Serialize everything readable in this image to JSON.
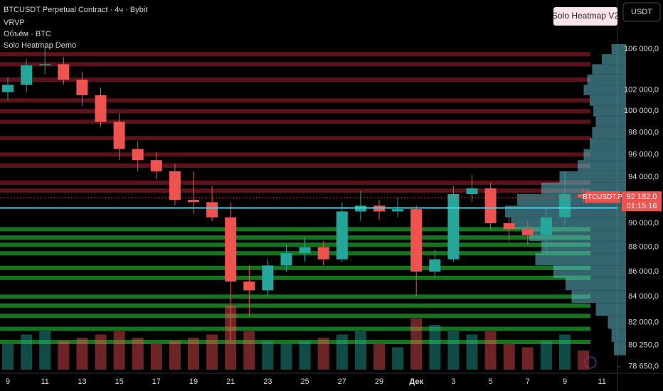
{
  "header": {
    "symbol": "BTCUSDT Perpetual Contract · 4ч · Bybit",
    "indicators": [
      "VRVP",
      "Объём · BTC",
      "Solo Heatmap Demo"
    ],
    "badge": "Solo Heatmap V2",
    "currency": "USDT"
  },
  "chart_data": {
    "type": "candlestick",
    "log_scale": true,
    "categories": [
      "9",
      null,
      "11",
      null,
      "13",
      null,
      "15",
      null,
      "17",
      null,
      "19",
      null,
      "21",
      null,
      "23",
      null,
      "25",
      null,
      "27",
      null,
      "29",
      null,
      "Дек",
      null,
      "3",
      null,
      "5",
      null,
      "7",
      null,
      "9",
      null,
      "11"
    ],
    "open": [
      101800,
      102500,
      104400,
      104500,
      103000,
      101500,
      99000,
      96500,
      95500,
      94500,
      92000,
      91800,
      90500,
      85200,
      84500,
      86500,
      87500,
      88000,
      87000,
      91000,
      91500,
      91000,
      91200,
      86000,
      87000,
      92500,
      93000,
      90000,
      89500,
      89000,
      90500,
      92500,
      null
    ],
    "high": [
      103200,
      105000,
      106200,
      105200,
      103800,
      102200,
      99800,
      97200,
      96200,
      95200,
      94500,
      93200,
      91800,
      86500,
      87000,
      88200,
      88800,
      88500,
      91800,
      92800,
      92000,
      92200,
      91500,
      87800,
      93200,
      94200,
      93500,
      90500,
      90200,
      91200,
      94500,
      93000,
      null
    ],
    "low": [
      101000,
      101800,
      103500,
      102500,
      100500,
      98500,
      95500,
      94500,
      93800,
      91500,
      90800,
      90200,
      80500,
      82500,
      84000,
      86000,
      86800,
      86500,
      86800,
      90200,
      90300,
      90500,
      84000,
      85500,
      86800,
      91800,
      89500,
      88500,
      88200,
      87500,
      89800,
      91800,
      null
    ],
    "close": [
      102500,
      104400,
      104500,
      103000,
      101500,
      99000,
      96500,
      95500,
      94500,
      92000,
      91800,
      90500,
      85200,
      84500,
      86500,
      87500,
      88000,
      87000,
      91000,
      91500,
      91000,
      91200,
      86000,
      87000,
      92500,
      93000,
      90000,
      89500,
      89000,
      90500,
      92500,
      92182,
      null
    ],
    "volume": [
      40,
      55,
      60,
      45,
      50,
      55,
      60,
      50,
      40,
      45,
      50,
      55,
      100,
      60,
      45,
      40,
      45,
      50,
      55,
      60,
      40,
      35,
      80,
      70,
      60,
      55,
      60,
      40,
      35,
      45,
      55,
      30,
      null
    ],
    "up_color": "#26a69a",
    "down_color": "#ef5350",
    "heatmap_levels": [
      105500,
      104500,
      103000,
      101000,
      100000,
      99000,
      97500,
      96000,
      95000,
      93500,
      92800,
      89500,
      88800,
      88200,
      87500,
      86300,
      85500,
      84000,
      83300,
      82500,
      81500,
      80500
    ],
    "heatmap_colors": {
      "above": "#7a1a22",
      "below": "#1e9a2a"
    },
    "profile_prices": [
      80000,
      81000,
      82000,
      83000,
      84000,
      85000,
      86000,
      87000,
      88000,
      89000,
      90000,
      91000,
      92000,
      93000,
      94000,
      95000,
      96000,
      97000,
      98000,
      99000,
      100000,
      101000,
      102000,
      103000,
      104000,
      105000,
      106000
    ],
    "profile_sizes": [
      10,
      12,
      15,
      25,
      45,
      50,
      60,
      75,
      70,
      80,
      95,
      100,
      90,
      70,
      55,
      40,
      35,
      30,
      28,
      25,
      27,
      30,
      35,
      32,
      28,
      20,
      12
    ],
    "profile_color": "#5fb8c8",
    "poc": 91300,
    "poc_color": "#4dd0e1",
    "last_price": {
      "value": 92182,
      "label": "92 182,0"
    },
    "countdown": "01:15:16",
    "symbol_tag": "BTCUSDT.P",
    "ylim": [
      78170,
      111000
    ],
    "yticks": [
      {
        "value": 106000,
        "label": "106 000,0"
      },
      {
        "value": 102000,
        "label": "102 000,0"
      },
      {
        "value": 100000,
        "label": "100 000,0"
      },
      {
        "value": 98000,
        "label": "98 000,0"
      },
      {
        "value": 96000,
        "label": "96 000,0"
      },
      {
        "value": 94000,
        "label": "94 000,0"
      },
      {
        "value": 90000,
        "label": "90 000,0"
      },
      {
        "value": 88000,
        "label": "88 000,0"
      },
      {
        "value": 86000,
        "label": "86 000,0"
      },
      {
        "value": 84000,
        "label": "84 000,0"
      },
      {
        "value": 82000,
        "label": "82 000,0"
      },
      {
        "value": 80250,
        "label": "80 250,0"
      },
      {
        "value": 78650,
        "label": "78 650,0"
      }
    ]
  }
}
